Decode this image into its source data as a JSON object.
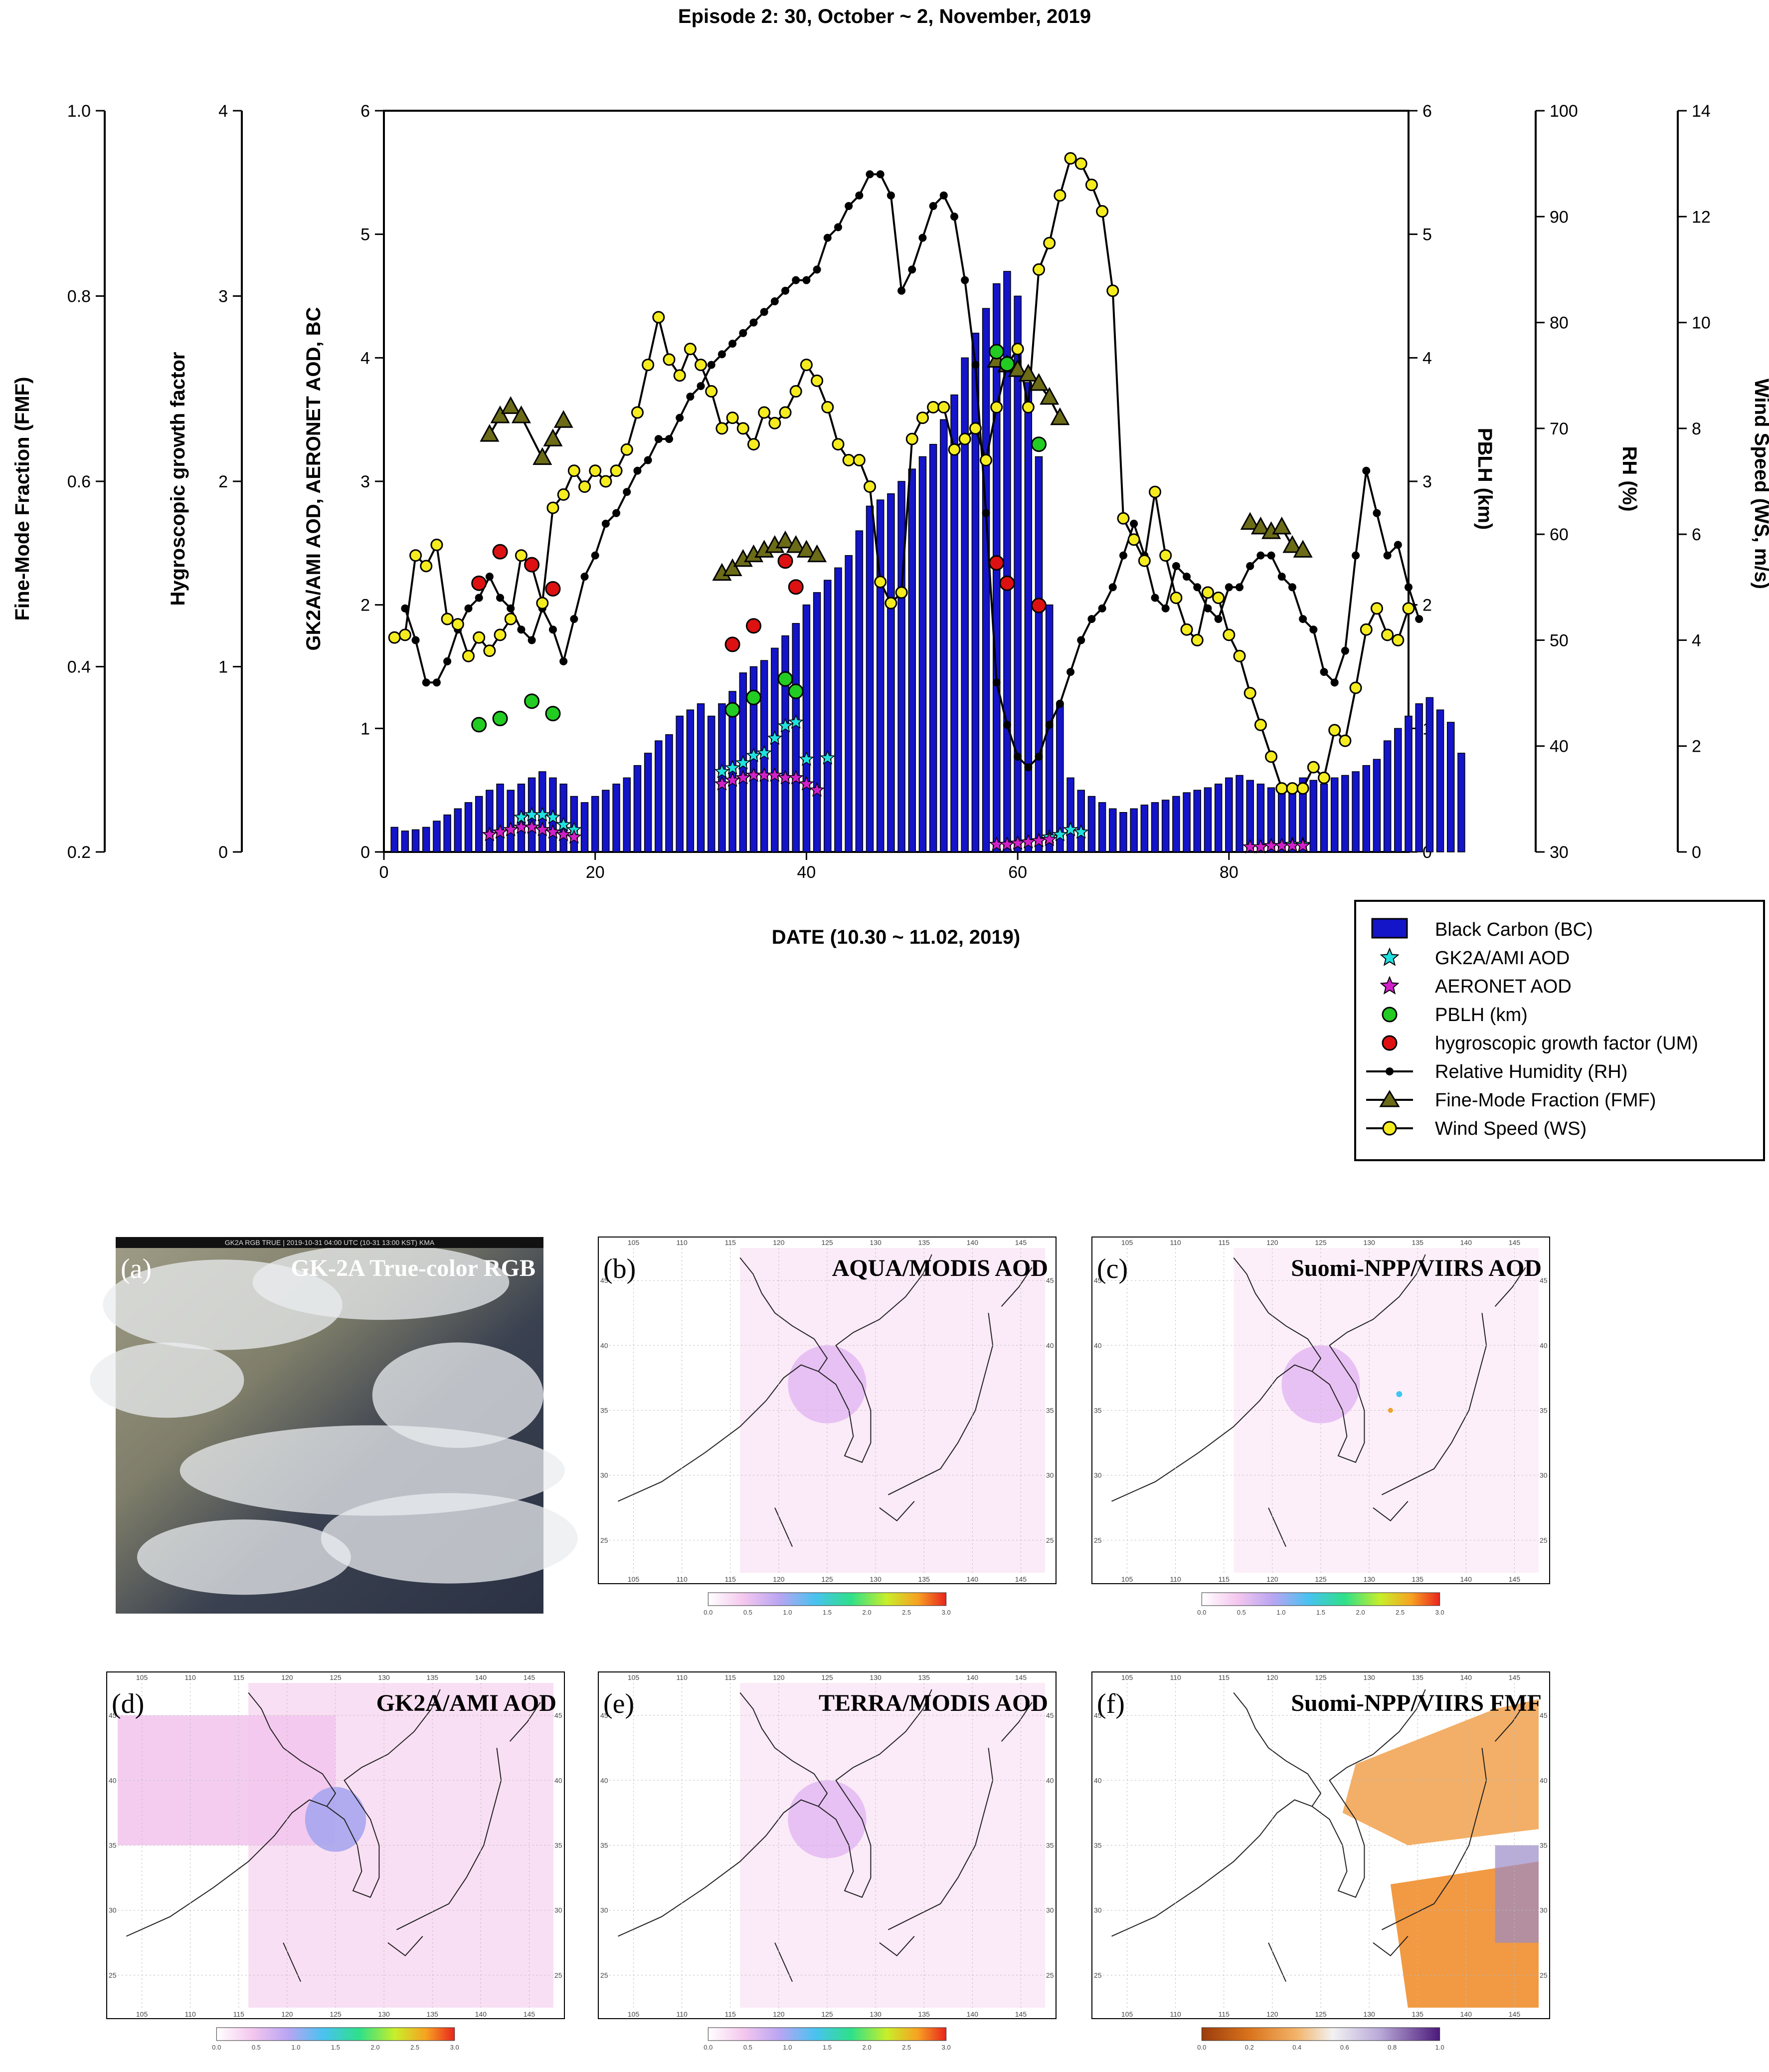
{
  "chart_data": {
    "type": "bar+line+scatter",
    "title": "Episode 2: 30, October ~ 2, November, 2019",
    "xlabel": "DATE (10.30 ~ 11.02, 2019)",
    "xlim": [
      0,
      97
    ],
    "x_ticks": [
      "0",
      "20",
      "40",
      "60",
      "80"
    ],
    "axes": {
      "fmf": {
        "label": "Fine-Mode Fraction (FMF)",
        "lim": [
          0.2,
          1.0
        ],
        "ticks": [
          "0.2",
          "0.4",
          "0.6",
          "0.8",
          "1.0"
        ]
      },
      "hgf": {
        "label": "Hygroscopic growth factor",
        "lim": [
          0,
          4
        ],
        "ticks": [
          "0",
          "1",
          "2",
          "3",
          "4"
        ]
      },
      "aod": {
        "label": "GK2A/AMI AOD, AERONET AOD, BC",
        "lim": [
          0,
          6
        ],
        "ticks": [
          "0",
          "1",
          "2",
          "3",
          "4",
          "5",
          "6"
        ]
      },
      "pblh": {
        "label": "PBLH (km)",
        "lim": [
          0,
          6
        ],
        "ticks": [
          "0",
          "1",
          "2",
          "3",
          "4",
          "5",
          "6"
        ]
      },
      "rh": {
        "label": "RH (%)",
        "lim": [
          30,
          100
        ],
        "ticks": [
          "30",
          "40",
          "50",
          "60",
          "70",
          "80",
          "90",
          "100"
        ]
      },
      "ws": {
        "label": "Wind Speed (WS, m/s)",
        "lim": [
          0,
          14
        ],
        "ticks": [
          "0",
          "2",
          "4",
          "6",
          "8",
          "10",
          "12",
          "14"
        ]
      }
    },
    "legend": {
      "position": "bottom-right",
      "entries": [
        "Black Carbon (BC)",
        "GK2A/AMI AOD",
        "AERONET AOD",
        "PBLH (km)",
        "hygroscopic growth factor (UM)",
        "Relative Humidity (RH)",
        "Fine-Mode Fraction (FMF)",
        "Wind Speed (WS)"
      ]
    },
    "bc": [
      0.2,
      0.17,
      0.18,
      0.2,
      0.25,
      0.3,
      0.35,
      0.4,
      0.45,
      0.5,
      0.55,
      0.5,
      0.55,
      0.6,
      0.65,
      0.6,
      0.55,
      0.45,
      0.4,
      0.45,
      0.5,
      0.55,
      0.6,
      0.7,
      0.8,
      0.9,
      0.95,
      1.1,
      1.15,
      1.2,
      1.1,
      1.2,
      1.3,
      1.45,
      1.5,
      1.55,
      1.65,
      1.75,
      1.85,
      2.0,
      2.1,
      2.2,
      2.3,
      2.4,
      2.6,
      2.8,
      2.85,
      2.9,
      3.0,
      3.1,
      3.2,
      3.3,
      3.5,
      3.7,
      4.0,
      4.2,
      4.4,
      4.6,
      4.7,
      4.5,
      3.8,
      3.2,
      2.0,
      1.2,
      0.6,
      0.5,
      0.45,
      0.4,
      0.35,
      0.32,
      0.35,
      0.38,
      0.4,
      0.42,
      0.45,
      0.48,
      0.5,
      0.52,
      0.55,
      0.6,
      0.62,
      0.58,
      0.55,
      0.52,
      0.5,
      0.55,
      0.6,
      0.58,
      0.55,
      0.6,
      0.62,
      0.65,
      0.7,
      0.75,
      0.9,
      1.0,
      1.1,
      1.2,
      1.25,
      1.15,
      1.05,
      0.8
    ],
    "gk2a_aod": [
      [
        13,
        0.28
      ],
      [
        14,
        0.3
      ],
      [
        15,
        0.3
      ],
      [
        16,
        0.28
      ],
      [
        17,
        0.22
      ],
      [
        18,
        0.18
      ],
      [
        32,
        0.65
      ],
      [
        33,
        0.68
      ],
      [
        34,
        0.72
      ],
      [
        35,
        0.78
      ],
      [
        36,
        0.8
      ],
      [
        37,
        0.92
      ],
      [
        38,
        1.02
      ],
      [
        39,
        1.05
      ],
      [
        40,
        0.75
      ],
      [
        42,
        0.76
      ],
      [
        63,
        0.12
      ],
      [
        64,
        0.14
      ],
      [
        65,
        0.18
      ],
      [
        66,
        0.16
      ],
      [
        85,
        0.05
      ],
      [
        86,
        0.06
      ],
      [
        87,
        0.06
      ]
    ],
    "aeronet_aod": [
      [
        10,
        0.14
      ],
      [
        11,
        0.16
      ],
      [
        12,
        0.18
      ],
      [
        13,
        0.2
      ],
      [
        14,
        0.2
      ],
      [
        15,
        0.18
      ],
      [
        16,
        0.16
      ],
      [
        17,
        0.14
      ],
      [
        18,
        0.12
      ],
      [
        32,
        0.55
      ],
      [
        33,
        0.58
      ],
      [
        34,
        0.6
      ],
      [
        35,
        0.62
      ],
      [
        36,
        0.62
      ],
      [
        37,
        0.62
      ],
      [
        38,
        0.6
      ],
      [
        39,
        0.6
      ],
      [
        40,
        0.55
      ],
      [
        41,
        0.5
      ],
      [
        58,
        0.06
      ],
      [
        59,
        0.06
      ],
      [
        60,
        0.07
      ],
      [
        61,
        0.08
      ],
      [
        62,
        0.09
      ],
      [
        63,
        0.1
      ],
      [
        82,
        0.04
      ],
      [
        83,
        0.04
      ],
      [
        84,
        0.05
      ],
      [
        85,
        0.05
      ],
      [
        86,
        0.05
      ],
      [
        87,
        0.05
      ]
    ],
    "pblh": [
      [
        9,
        1.03
      ],
      [
        11,
        1.08
      ],
      [
        14,
        1.22
      ],
      [
        16,
        1.12
      ],
      [
        33,
        1.15
      ],
      [
        35,
        1.25
      ],
      [
        38,
        1.4
      ],
      [
        39,
        1.3
      ],
      [
        58,
        4.05
      ],
      [
        59,
        3.95
      ],
      [
        62,
        3.3
      ]
    ],
    "hgf": [
      [
        9,
        1.45
      ],
      [
        11,
        1.62
      ],
      [
        14,
        1.55
      ],
      [
        16,
        1.42
      ],
      [
        33,
        1.12
      ],
      [
        35,
        1.22
      ],
      [
        38,
        1.57
      ],
      [
        39,
        1.43
      ],
      [
        58,
        1.56
      ],
      [
        59,
        1.45
      ],
      [
        62,
        1.33
      ]
    ],
    "fmf": [
      [
        10,
        0.65
      ],
      [
        11,
        0.67
      ],
      [
        12,
        0.68
      ],
      [
        13,
        0.67
      ],
      [
        15,
        0.625
      ],
      [
        16,
        0.645
      ],
      [
        17,
        0.665
      ],
      [
        32,
        0.5
      ],
      [
        33,
        0.505
      ],
      [
        34,
        0.515
      ],
      [
        35,
        0.52
      ],
      [
        36,
        0.525
      ],
      [
        37,
        0.53
      ],
      [
        38,
        0.535
      ],
      [
        39,
        0.53
      ],
      [
        40,
        0.525
      ],
      [
        41,
        0.52
      ],
      [
        58,
        0.73
      ],
      [
        59,
        0.725
      ],
      [
        60,
        0.72
      ],
      [
        61,
        0.715
      ],
      [
        62,
        0.705
      ],
      [
        63,
        0.69
      ],
      [
        64,
        0.668
      ],
      [
        82,
        0.555
      ],
      [
        83,
        0.55
      ],
      [
        84,
        0.545
      ],
      [
        85,
        0.55
      ],
      [
        86,
        0.53
      ],
      [
        87,
        0.525
      ]
    ],
    "rh": [
      [
        2,
        53
      ],
      [
        3,
        50
      ],
      [
        4,
        46
      ],
      [
        5,
        46
      ],
      [
        6,
        48
      ],
      [
        7,
        51
      ],
      [
        8,
        53
      ],
      [
        9,
        54
      ],
      [
        10,
        56
      ],
      [
        11,
        54
      ],
      [
        12,
        53
      ],
      [
        13,
        51
      ],
      [
        14,
        50
      ],
      [
        15,
        53
      ],
      [
        16,
        51
      ],
      [
        17,
        48
      ],
      [
        18,
        52
      ],
      [
        19,
        56
      ],
      [
        20,
        58
      ],
      [
        21,
        61
      ],
      [
        22,
        62
      ],
      [
        23,
        64
      ],
      [
        24,
        66
      ],
      [
        25,
        67
      ],
      [
        26,
        69
      ],
      [
        27,
        69
      ],
      [
        28,
        71
      ],
      [
        29,
        73
      ],
      [
        30,
        74
      ],
      [
        31,
        76
      ],
      [
        32,
        77
      ],
      [
        33,
        78
      ],
      [
        34,
        79
      ],
      [
        35,
        80
      ],
      [
        36,
        81
      ],
      [
        37,
        82
      ],
      [
        38,
        83
      ],
      [
        39,
        84
      ],
      [
        40,
        84
      ],
      [
        41,
        85
      ],
      [
        42,
        88
      ],
      [
        43,
        89
      ],
      [
        44,
        91
      ],
      [
        45,
        92
      ],
      [
        46,
        94
      ],
      [
        47,
        94
      ],
      [
        48,
        92
      ],
      [
        49,
        83
      ],
      [
        50,
        85
      ],
      [
        51,
        88
      ],
      [
        52,
        91
      ],
      [
        53,
        92
      ],
      [
        54,
        90
      ],
      [
        55,
        84
      ],
      [
        56,
        76
      ],
      [
        57,
        62
      ],
      [
        58,
        46
      ],
      [
        59,
        42
      ],
      [
        60,
        39
      ],
      [
        61,
        38
      ],
      [
        62,
        39
      ],
      [
        63,
        42
      ],
      [
        64,
        44
      ],
      [
        65,
        47
      ],
      [
        66,
        50
      ],
      [
        67,
        52
      ],
      [
        68,
        53
      ],
      [
        69,
        55
      ],
      [
        70,
        58
      ],
      [
        71,
        61
      ],
      [
        72,
        58
      ],
      [
        73,
        54
      ],
      [
        74,
        53
      ],
      [
        75,
        57
      ],
      [
        76,
        56
      ],
      [
        77,
        55
      ],
      [
        78,
        53
      ],
      [
        79,
        52
      ],
      [
        80,
        55
      ],
      [
        81,
        55
      ],
      [
        82,
        57
      ],
      [
        83,
        58
      ],
      [
        84,
        58
      ],
      [
        85,
        56
      ],
      [
        86,
        55
      ],
      [
        87,
        52
      ],
      [
        88,
        51
      ],
      [
        89,
        47
      ],
      [
        90,
        46
      ],
      [
        91,
        49
      ],
      [
        92,
        58
      ],
      [
        93,
        66
      ],
      [
        94,
        62
      ],
      [
        95,
        58
      ],
      [
        96,
        59
      ],
      [
        97,
        55
      ],
      [
        98,
        52
      ]
    ],
    "ws": [
      [
        1,
        4.05
      ],
      [
        2,
        4.1
      ],
      [
        3,
        5.6
      ],
      [
        4,
        5.4
      ],
      [
        5,
        5.8
      ],
      [
        6,
        4.4
      ],
      [
        7,
        4.3
      ],
      [
        8,
        3.7
      ],
      [
        9,
        4.05
      ],
      [
        10,
        3.8
      ],
      [
        11,
        4.1
      ],
      [
        12,
        4.4
      ],
      [
        13,
        5.6
      ],
      [
        14,
        5.4
      ],
      [
        15,
        4.7
      ],
      [
        16,
        6.5
      ],
      [
        17,
        6.75
      ],
      [
        18,
        7.2
      ],
      [
        19,
        6.9
      ],
      [
        20,
        7.2
      ],
      [
        21,
        7.0
      ],
      [
        22,
        7.2
      ],
      [
        23,
        7.6
      ],
      [
        24,
        8.3
      ],
      [
        25,
        9.2
      ],
      [
        26,
        10.1
      ],
      [
        27,
        9.3
      ],
      [
        28,
        9.0
      ],
      [
        29,
        9.5
      ],
      [
        30,
        9.2
      ],
      [
        31,
        8.7
      ],
      [
        32,
        8.0
      ],
      [
        33,
        8.2
      ],
      [
        34,
        8.0
      ],
      [
        35,
        7.7
      ],
      [
        36,
        8.3
      ],
      [
        37,
        8.1
      ],
      [
        38,
        8.3
      ],
      [
        39,
        8.7
      ],
      [
        40,
        9.2
      ],
      [
        41,
        8.9
      ],
      [
        42,
        8.4
      ],
      [
        43,
        7.7
      ],
      [
        44,
        7.4
      ],
      [
        45,
        7.4
      ],
      [
        46,
        6.9
      ],
      [
        47,
        5.1
      ],
      [
        48,
        4.7
      ],
      [
        49,
        4.9
      ],
      [
        50,
        7.8
      ],
      [
        51,
        8.2
      ],
      [
        52,
        8.4
      ],
      [
        53,
        8.4
      ],
      [
        54,
        7.6
      ],
      [
        55,
        7.8
      ],
      [
        56,
        8.0
      ],
      [
        57,
        7.4
      ],
      [
        58,
        8.4
      ],
      [
        59,
        9.2
      ],
      [
        60,
        9.5
      ],
      [
        61,
        8.4
      ],
      [
        62,
        11.0
      ],
      [
        63,
        11.5
      ],
      [
        64,
        12.4
      ],
      [
        65,
        13.1
      ],
      [
        66,
        13.0
      ],
      [
        67,
        12.6
      ],
      [
        68,
        12.1
      ],
      [
        69,
        10.6
      ],
      [
        70,
        6.3
      ],
      [
        71,
        5.9
      ],
      [
        72,
        5.5
      ],
      [
        73,
        6.8
      ],
      [
        74,
        5.6
      ],
      [
        75,
        4.8
      ],
      [
        76,
        4.2
      ],
      [
        77,
        4.0
      ],
      [
        78,
        4.9
      ],
      [
        79,
        4.8
      ],
      [
        80,
        4.1
      ],
      [
        81,
        3.7
      ],
      [
        82,
        3.0
      ],
      [
        83,
        2.4
      ],
      [
        84,
        1.8
      ],
      [
        85,
        1.2
      ],
      [
        86,
        1.2
      ],
      [
        87,
        1.2
      ],
      [
        88,
        1.6
      ],
      [
        89,
        1.4
      ],
      [
        90,
        2.3
      ],
      [
        91,
        2.1
      ],
      [
        92,
        3.1
      ],
      [
        93,
        4.2
      ],
      [
        94,
        4.6
      ],
      [
        95,
        4.1
      ],
      [
        96,
        4.0
      ],
      [
        97,
        4.6
      ]
    ]
  },
  "maps": {
    "panels": [
      {
        "letter": "(a)",
        "title": "GK-2A True-color RGB",
        "header": "GK2A RGB TRUE | 2019-10-31 04:00 UTC (10-31 13:00 KST) KMA"
      },
      {
        "letter": "(b)",
        "title": "AQUA/MODIS AOD"
      },
      {
        "letter": "(c)",
        "title": "Suomi-NPP/VIIRS AOD"
      },
      {
        "letter": "(d)",
        "title": "GK2A/AMI AOD"
      },
      {
        "letter": "(e)",
        "title": "TERRA/MODIS AOD"
      },
      {
        "letter": "(f)",
        "title": "Suomi-NPP/VIIRS FMF"
      }
    ],
    "lon_ticks": [
      "105",
      "110",
      "115",
      "120",
      "125",
      "130",
      "135",
      "140",
      "145"
    ],
    "lat_ticks": [
      "45",
      "40",
      "35",
      "30",
      "25"
    ],
    "aod_cbar_ticks": [
      "0.0",
      "0.5",
      "1.0",
      "1.5",
      "2.0",
      "2.5",
      "3.0"
    ],
    "fmf_cbar_ticks": [
      "0.0",
      "0.2",
      "0.4",
      "0.6",
      "0.8",
      "1.0"
    ]
  },
  "colors": {
    "bc": "#1414c8",
    "gk2a": "#20e0e0",
    "aeronet": "#d020c8",
    "pblh": "#22cc22",
    "hgf": "#dd1111",
    "fmf": "#6b6b18",
    "ws": "#f5ec1f",
    "rh": "#000000"
  }
}
